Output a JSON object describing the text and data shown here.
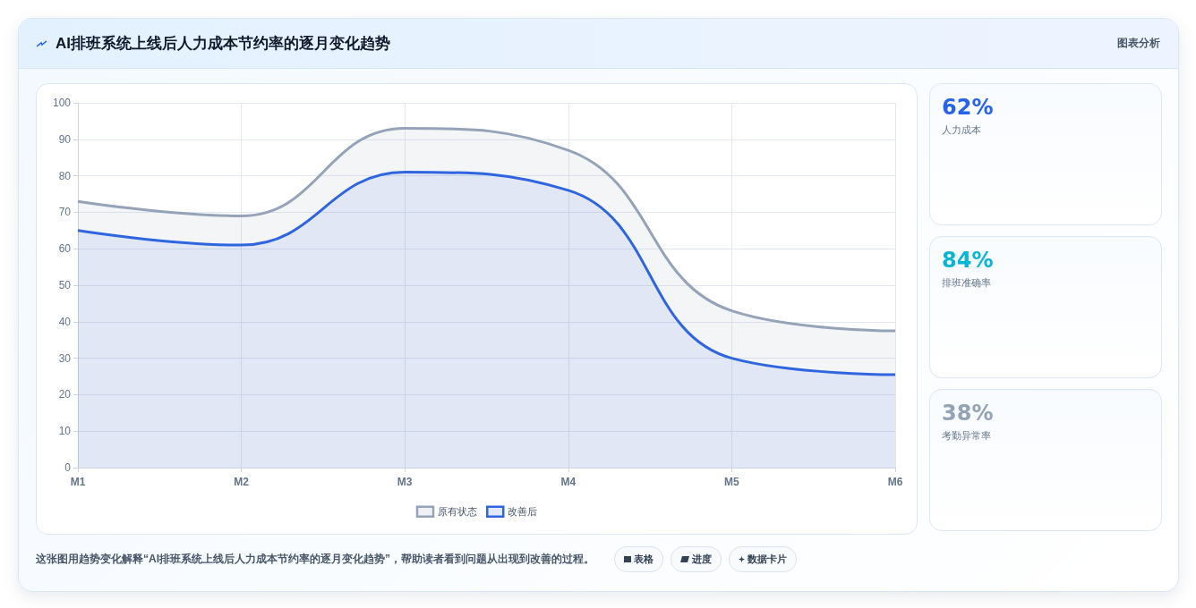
{
  "chart_data": [
    {
      "type": "area",
      "title": "AI排班系统上线后人力成本节约率的逐月变化趋势",
      "categories": [
        "M1",
        "M2",
        "M3",
        "M4",
        "M5",
        "M6"
      ],
      "series": [
        {
          "name": "原有状态",
          "color": "#94a3b8",
          "values": [
            73,
            69,
            93,
            87,
            43,
            37.5
          ]
        },
        {
          "name": "改善后",
          "color": "#2f66e0",
          "values": [
            65,
            61,
            81,
            76,
            30,
            25.5
          ]
        }
      ],
      "ylim": [
        0,
        100
      ],
      "yticks": [
        0,
        10,
        20,
        30,
        40,
        50,
        60,
        70,
        80,
        90,
        100
      ],
      "grid": true,
      "legend": "bottom",
      "marker": "none",
      "annotations": [
        "图表分析",
        "这张图用趋势变化解释“AI排班系统上线后人力成本节约率的逐月变化趋势”，帮助读者看到问题从出现到改善的过程。",
        "表格",
        "进度",
        "数据卡片"
      ]
    },
    {
      "type": "other",
      "annotations": [
        "62%",
        "人力成本",
        "84%",
        "排班准确率",
        "38%",
        "考勤异常率"
      ]
    }
  ]
}
